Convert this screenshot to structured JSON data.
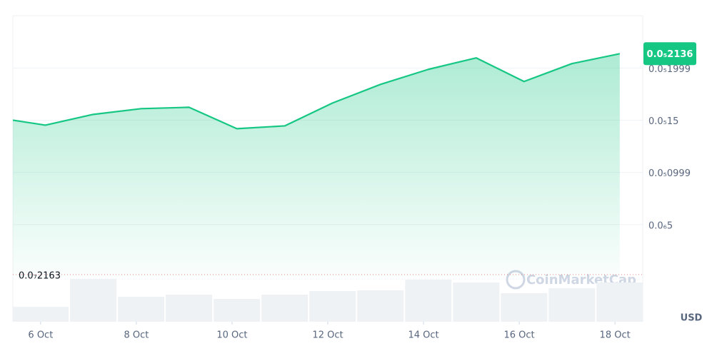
{
  "chart_data": {
    "type": "area",
    "x": [
      5.42,
      6.1,
      7.1,
      8.1,
      9.1,
      10.1,
      11.1,
      12.1,
      13.1,
      14.1,
      15.1,
      16.1,
      17.1,
      18.1
    ],
    "series": [
      {
        "color": "#16c784",
        "values": [
          1.5e-06,
          1.452e-06,
          1.555e-06,
          1.61e-06,
          1.623e-06,
          1.418e-06,
          1.445e-06,
          1.664e-06,
          1.842e-06,
          1.986e-06,
          2.096e-06,
          1.87e-06,
          2.041e-06,
          2.136e-06
        ]
      }
    ],
    "volume": {
      "color": "#eff2f5",
      "values": [
        21,
        21,
        60,
        35,
        38,
        32,
        38,
        43,
        44,
        59,
        55,
        40,
        47,
        55
      ]
    },
    "xlim": [
      5.42,
      18.58
    ],
    "ylim": [
      0,
      2.5e-06
    ],
    "xticks": [
      {
        "value": 6,
        "label": "6 Oct"
      },
      {
        "value": 8,
        "label": "8 Oct"
      },
      {
        "value": 10,
        "label": "10 Oct"
      },
      {
        "value": 12,
        "label": "12 Oct"
      },
      {
        "value": 14,
        "label": "14 Oct"
      },
      {
        "value": 16,
        "label": "16 Oct"
      },
      {
        "value": 18,
        "label": "18 Oct"
      }
    ],
    "yticks": [
      {
        "value": 5e-07,
        "label": "0.0₆5"
      },
      {
        "value": 9.99e-07,
        "label": "0.0₅0999"
      },
      {
        "value": 1.5e-06,
        "label": "0.0₅15"
      },
      {
        "value": 1.999e-06,
        "label": "0.0₅1999"
      }
    ],
    "grid": true,
    "min_line": {
      "value": 2.163e-08,
      "label": "0.0₇2163"
    },
    "current_price_label": "0.0₅2136",
    "currency": "USD",
    "watermark": "CoinMarketCap"
  }
}
